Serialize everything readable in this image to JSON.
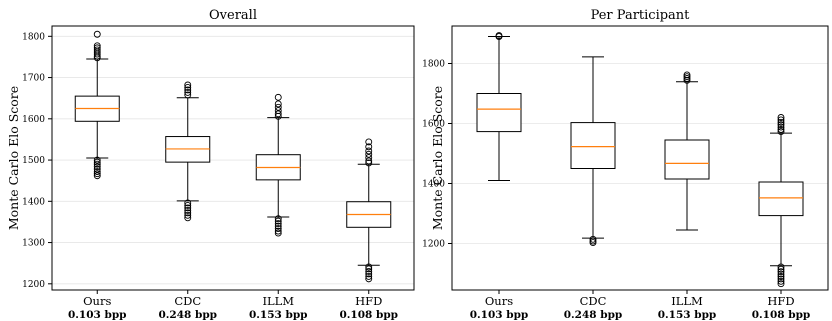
{
  "chart_data": [
    {
      "type": "box",
      "title": "Overall",
      "ylabel": "Monte Carlo Elo Score",
      "xlabel": "",
      "ylim": [
        1185,
        1825
      ],
      "yticks": [
        1200,
        1300,
        1400,
        1500,
        1600,
        1700,
        1800
      ],
      "grid": "horizontal",
      "categories": [
        "Ours",
        "CDC",
        "ILLM",
        "HFD"
      ],
      "subcategories": [
        "0.103 bpp",
        "0.248 bpp",
        "0.153 bpp",
        "0.108 bpp"
      ],
      "median_color": "#ff7f0e",
      "boxes": [
        {
          "whisker_low": 1505,
          "q1": 1594,
          "median": 1625,
          "q3": 1655,
          "whisker_high": 1745,
          "outliers": [
            1805,
            1777,
            1772,
            1767,
            1762,
            1757,
            1752,
            1748,
            1500,
            1495,
            1490,
            1484,
            1478,
            1472,
            1467,
            1462
          ]
        },
        {
          "whisker_low": 1401,
          "q1": 1495,
          "median": 1527,
          "q3": 1557,
          "whisker_high": 1651,
          "outliers": [
            1682,
            1676,
            1670,
            1664,
            1658,
            1396,
            1390,
            1384,
            1378,
            1372,
            1366,
            1360
          ]
        },
        {
          "whisker_low": 1362,
          "q1": 1452,
          "median": 1482,
          "q3": 1513,
          "whisker_high": 1603,
          "outliers": [
            1652,
            1636,
            1628,
            1620,
            1612,
            1606,
            1358,
            1352,
            1346,
            1340,
            1334,
            1328,
            1323
          ]
        },
        {
          "whisker_low": 1245,
          "q1": 1337,
          "median": 1368,
          "q3": 1399,
          "whisker_high": 1490,
          "outliers": [
            1544,
            1532,
            1522,
            1514,
            1506,
            1498,
            1493,
            1241,
            1236,
            1230,
            1224,
            1218,
            1212
          ]
        }
      ]
    },
    {
      "type": "box",
      "title": "Per Participant",
      "ylabel": "Monte Carlo Elo Score",
      "xlabel": "",
      "ylim": [
        1045,
        1925
      ],
      "yticks": [
        1200,
        1400,
        1600,
        1800
      ],
      "grid": "horizontal",
      "categories": [
        "Ours",
        "CDC",
        "ILLM",
        "HFD"
      ],
      "subcategories": [
        "0.103 bpp",
        "0.248 bpp",
        "0.153 bpp",
        "0.108 bpp"
      ],
      "median_color": "#ff7f0e",
      "boxes": [
        {
          "whisker_low": 1410,
          "q1": 1573,
          "median": 1648,
          "q3": 1700,
          "whisker_high": 1890,
          "outliers": [
            1893,
            1890
          ]
        },
        {
          "whisker_low": 1218,
          "q1": 1450,
          "median": 1523,
          "q3": 1603,
          "whisker_high": 1822,
          "outliers": [
            1214,
            1208,
            1203
          ]
        },
        {
          "whisker_low": 1245,
          "q1": 1415,
          "median": 1467,
          "q3": 1545,
          "whisker_high": 1739,
          "outliers": [
            1762,
            1756,
            1750,
            1744
          ]
        },
        {
          "whisker_low": 1126,
          "q1": 1293,
          "median": 1352,
          "q3": 1405,
          "whisker_high": 1568,
          "outliers": [
            1620,
            1612,
            1604,
            1596,
            1588,
            1580,
            1573,
            1122,
            1114,
            1106,
            1098,
            1090,
            1082,
            1074,
            1066
          ]
        }
      ]
    }
  ]
}
